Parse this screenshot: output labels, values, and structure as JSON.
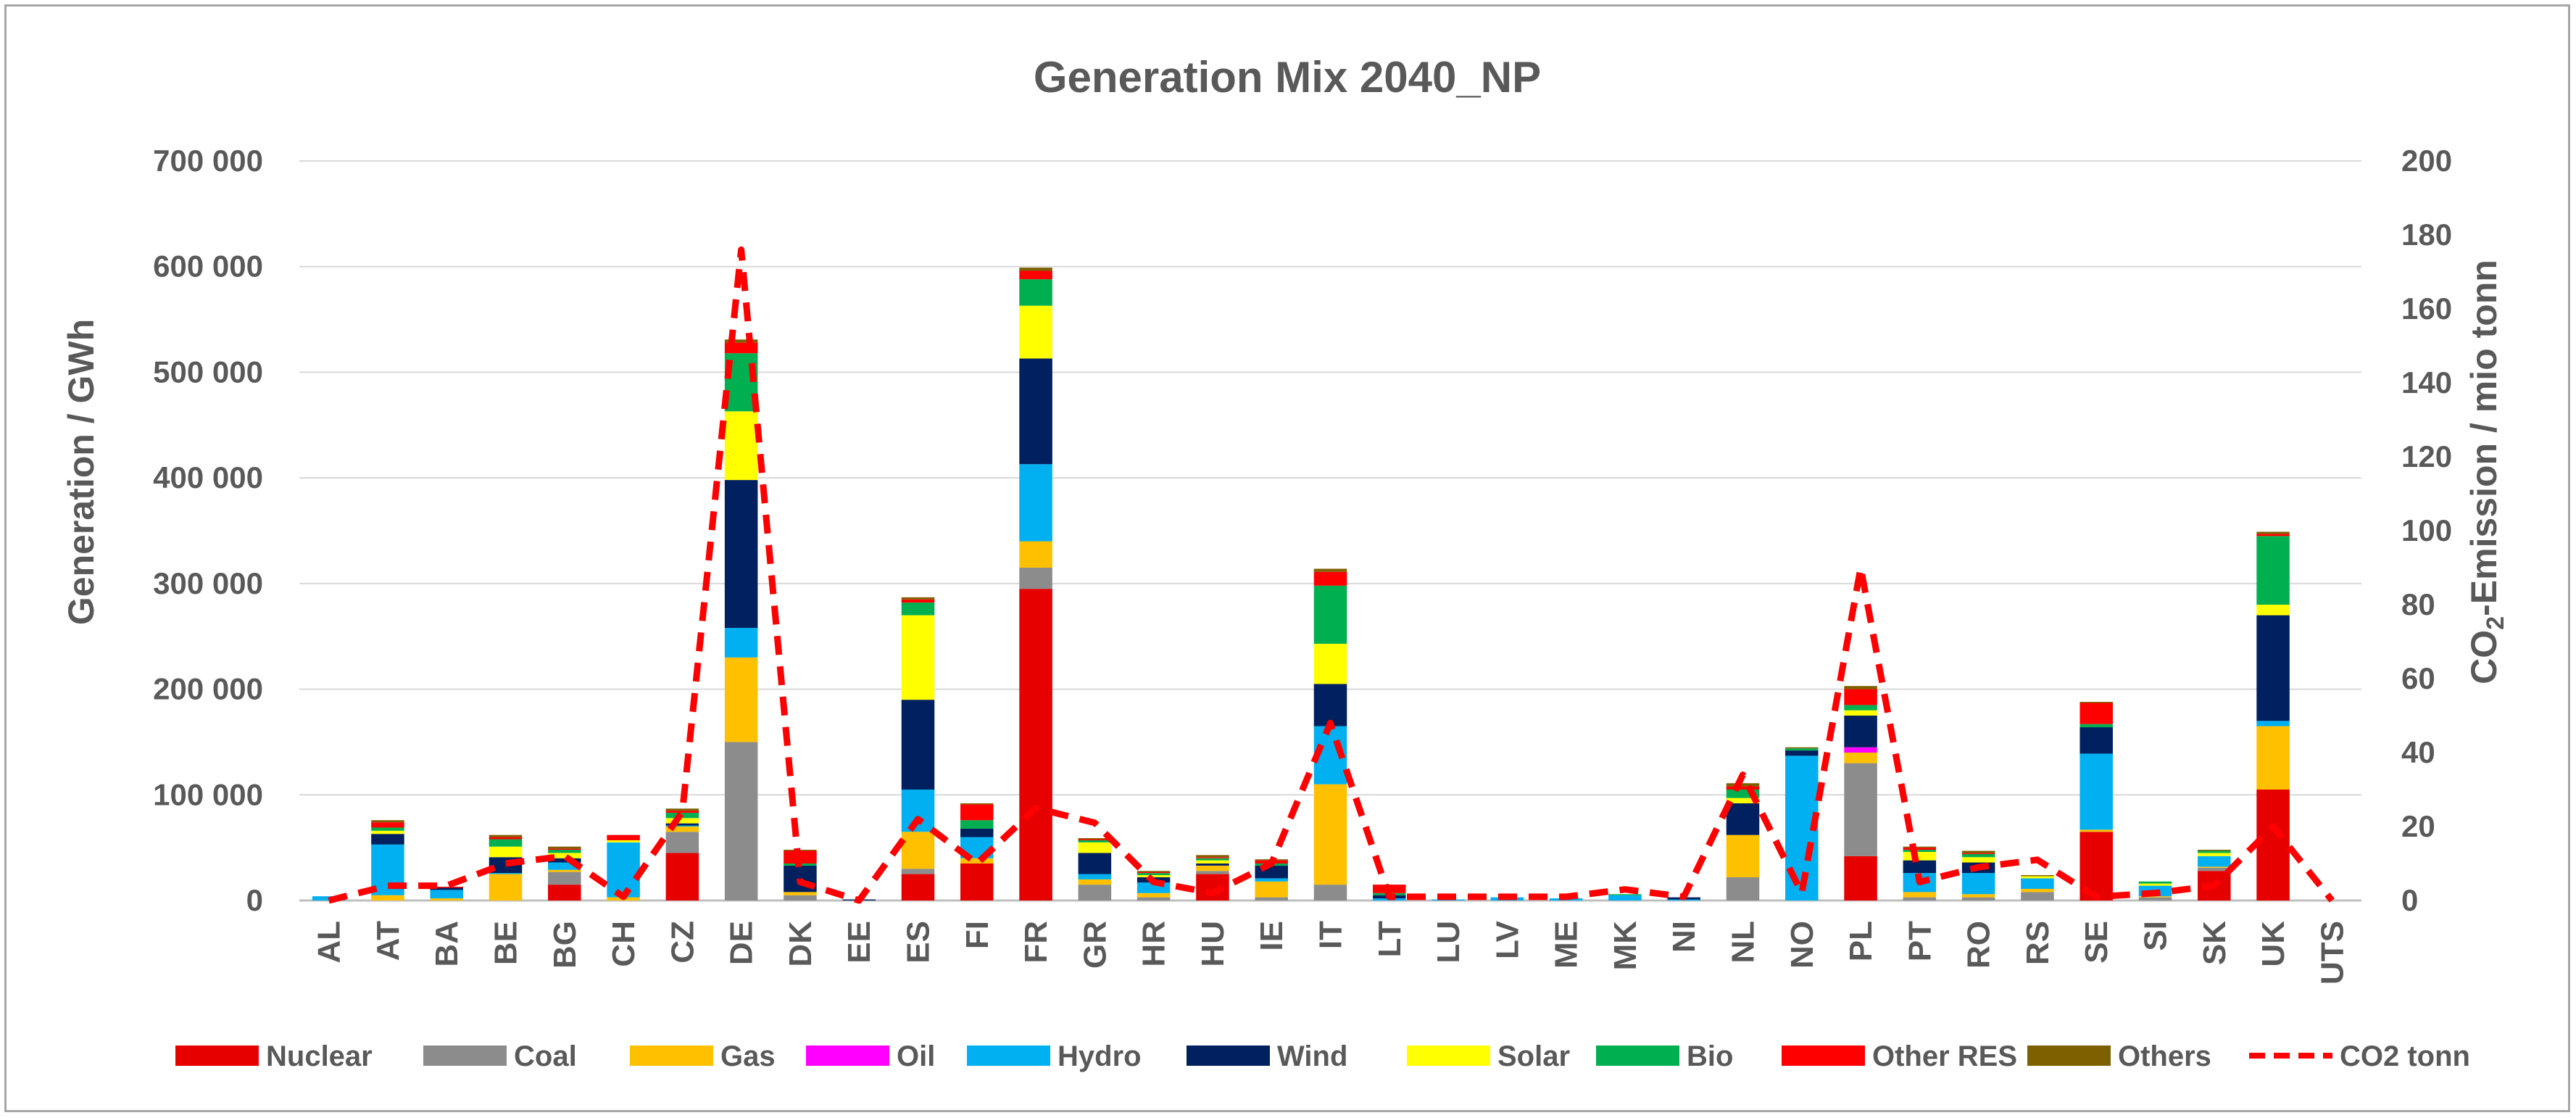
{
  "chart_data": {
    "type": "bar",
    "subtype": "stacked-bar-with-line",
    "title": "Generation Mix 2040_NP",
    "ylabel": "Generation  / GWh",
    "y2label_prefix": "CO",
    "y2label_sub": "2",
    "y2label_suffix": "-Emission  / mio tonn",
    "ylim": [
      0,
      700000
    ],
    "y2lim": [
      0,
      200
    ],
    "yticks": [
      0,
      100000,
      200000,
      300000,
      400000,
      500000,
      600000,
      700000
    ],
    "yticklabels": [
      "0",
      "100 000",
      "200 000",
      "300 000",
      "400 000",
      "500 000",
      "600 000",
      "700 000"
    ],
    "y2ticks": [
      0,
      20,
      40,
      60,
      80,
      100,
      120,
      140,
      160,
      180,
      200
    ],
    "y2ticklabels": [
      "0",
      "20",
      "40",
      "60",
      "80",
      "100",
      "120",
      "140",
      "160",
      "180",
      "200"
    ],
    "grid": true,
    "legend_position": "bottom",
    "categories": [
      "AL",
      "AT",
      "BA",
      "BE",
      "BG",
      "CH",
      "CZ",
      "DE",
      "DK",
      "EE",
      "ES",
      "FI",
      "FR",
      "GR",
      "HR",
      "HU",
      "IE",
      "IT",
      "LT",
      "LU",
      "LV",
      "ME",
      "MK",
      "NI",
      "NL",
      "NO",
      "PL",
      "PT",
      "RO",
      "RS",
      "SE",
      "SI",
      "SK",
      "UK",
      "UTS"
    ],
    "series": [
      {
        "name": "Nuclear",
        "color": "#e60000",
        "values": [
          0,
          0,
          0,
          0,
          15000,
          0,
          45000,
          0,
          0,
          0,
          25000,
          35000,
          295000,
          0,
          0,
          25000,
          0,
          0,
          0,
          0,
          0,
          0,
          0,
          0,
          0,
          0,
          42000,
          0,
          0,
          0,
          65000,
          0,
          28000,
          105000,
          0
        ]
      },
      {
        "name": "Coal",
        "color": "#8c8c8c",
        "values": [
          0,
          0,
          0,
          0,
          12000,
          0,
          20000,
          150000,
          5000,
          0,
          5000,
          0,
          20000,
          15000,
          3000,
          3000,
          3000,
          15000,
          0,
          0,
          0,
          0,
          0,
          0,
          22000,
          0,
          88000,
          3000,
          3000,
          8000,
          0,
          3000,
          3000,
          0,
          0
        ]
      },
      {
        "name": "Gas",
        "color": "#ffc000",
        "values": [
          0,
          5000,
          2000,
          25000,
          2000,
          3000,
          5000,
          80000,
          3000,
          0,
          35000,
          5000,
          25000,
          5000,
          4000,
          5000,
          15000,
          95000,
          0,
          0,
          0,
          0,
          0,
          0,
          40000,
          0,
          10000,
          5000,
          3000,
          3000,
          2000,
          1000,
          1000,
          60000,
          0
        ]
      },
      {
        "name": "Oil",
        "color": "#ff00ff",
        "values": [
          0,
          0,
          0,
          0,
          0,
          0,
          0,
          0,
          0,
          0,
          0,
          0,
          0,
          0,
          0,
          0,
          0,
          0,
          0,
          0,
          0,
          0,
          0,
          0,
          0,
          0,
          5000,
          0,
          0,
          0,
          0,
          0,
          0,
          0,
          0
        ]
      },
      {
        "name": "Hydro",
        "color": "#00b0f0",
        "values": [
          4000,
          48000,
          8000,
          1000,
          7000,
          52000,
          1000,
          28000,
          0,
          0,
          40000,
          20000,
          73000,
          5000,
          10000,
          0,
          3000,
          55000,
          2000,
          1000,
          3000,
          2000,
          5000,
          1000,
          0,
          137000,
          0,
          18000,
          20000,
          10000,
          72000,
          10000,
          10000,
          5000,
          0
        ]
      },
      {
        "name": "Wind",
        "color": "#002060",
        "values": [
          0,
          10000,
          2000,
          15000,
          4000,
          0,
          2000,
          140000,
          25000,
          1000,
          85000,
          8000,
          100000,
          20000,
          5000,
          2000,
          12000,
          40000,
          3000,
          0,
          0,
          0,
          0,
          2000,
          30000,
          5000,
          30000,
          12000,
          10000,
          0,
          25000,
          0,
          0,
          100000,
          0
        ]
      },
      {
        "name": "Solar",
        "color": "#ffff00",
        "values": [
          0,
          3000,
          0,
          10000,
          5000,
          2000,
          5000,
          65000,
          0,
          0,
          80000,
          0,
          50000,
          10000,
          2000,
          3000,
          0,
          38000,
          0,
          0,
          0,
          0,
          0,
          0,
          5000,
          0,
          5000,
          8000,
          5000,
          2000,
          0,
          2000,
          3000,
          10000,
          0
        ]
      },
      {
        "name": "Bio",
        "color": "#00b050",
        "values": [
          0,
          3000,
          0,
          7000,
          3000,
          0,
          5000,
          55000,
          2000,
          0,
          12000,
          8000,
          25000,
          2000,
          2000,
          2000,
          2000,
          55000,
          2000,
          0,
          0,
          0,
          1000,
          0,
          8000,
          2000,
          5000,
          2000,
          3000,
          0,
          3000,
          2000,
          2000,
          65000,
          0
        ]
      },
      {
        "name": "Other RES",
        "color": "#ff0000",
        "values": [
          0,
          5000,
          1000,
          2000,
          1000,
          5000,
          2000,
          10000,
          12000,
          0,
          3000,
          15000,
          8000,
          1000,
          1000,
          1000,
          3000,
          13000,
          8000,
          0,
          0,
          0,
          0,
          0,
          3000,
          0,
          15000,
          2000,
          1000,
          0,
          20000,
          0,
          0,
          2000,
          0
        ]
      },
      {
        "name": "Others",
        "color": "#7f6000",
        "values": [
          0,
          2000,
          0,
          2000,
          2000,
          0,
          2000,
          3000,
          1000,
          0,
          2000,
          1000,
          3000,
          1000,
          1000,
          2000,
          1000,
          3000,
          0,
          0,
          0,
          0,
          0,
          0,
          3000,
          1000,
          3000,
          1000,
          2000,
          1000,
          1000,
          0,
          1000,
          2000,
          0
        ]
      }
    ],
    "line": {
      "name": "CO2 tonn",
      "color": "#ff0000",
      "axis": "secondary",
      "values": [
        0,
        4,
        4,
        10,
        12,
        1,
        24,
        176,
        5,
        0,
        22,
        10,
        25,
        21,
        5,
        2,
        10,
        48,
        1,
        1,
        1,
        1,
        3,
        1,
        34,
        2,
        90,
        5,
        9,
        11,
        1,
        2,
        4,
        20,
        0
      ]
    }
  }
}
